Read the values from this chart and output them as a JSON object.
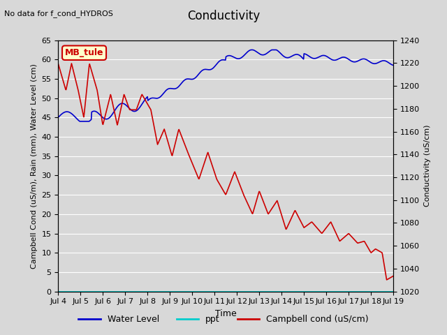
{
  "title": "Conductivity",
  "top_left_text": "No data for f_cond_HYDROS",
  "ylabel_left": "Campbell Cond (uS/m), Rain (mm), Water Level (cm)",
  "ylabel_right": "Conductivity (uS/cm)",
  "xlabel": "Time",
  "ylim_left": [
    0,
    65
  ],
  "ylim_right": [
    1020,
    1240
  ],
  "yticks_left": [
    0,
    5,
    10,
    15,
    20,
    25,
    30,
    35,
    40,
    45,
    50,
    55,
    60,
    65
  ],
  "yticks_right": [
    1020,
    1040,
    1060,
    1080,
    1100,
    1120,
    1140,
    1160,
    1180,
    1200,
    1220,
    1240
  ],
  "xtick_labels": [
    "Jul 4",
    "Jul 5",
    "Jul 6",
    "Jul 7",
    "Jul 8",
    "Jul 9",
    "Jul 10",
    "Jul 11",
    "Jul 12",
    "Jul 13",
    "Jul 14",
    "Jul 15",
    "Jul 16",
    "Jul 17",
    "Jul 18",
    "Jul 19"
  ],
  "legend_label_box": "MB_tule",
  "legend_entries": [
    "Water Level",
    "ppt",
    "Campbell cond (uS/cm)"
  ],
  "legend_colors": [
    "#0000cc",
    "#00cccc",
    "#cc0000"
  ],
  "background_color": "#d8d8d8",
  "plot_bg_color": "#d8d8d8",
  "grid_color": "#ffffff",
  "water_level_color": "#0000cc",
  "ppt_color": "#00cccc",
  "campbell_color": "#cc0000",
  "title_fontsize": 12,
  "axis_fontsize": 8,
  "figsize": [
    6.4,
    4.8
  ],
  "dpi": 100
}
